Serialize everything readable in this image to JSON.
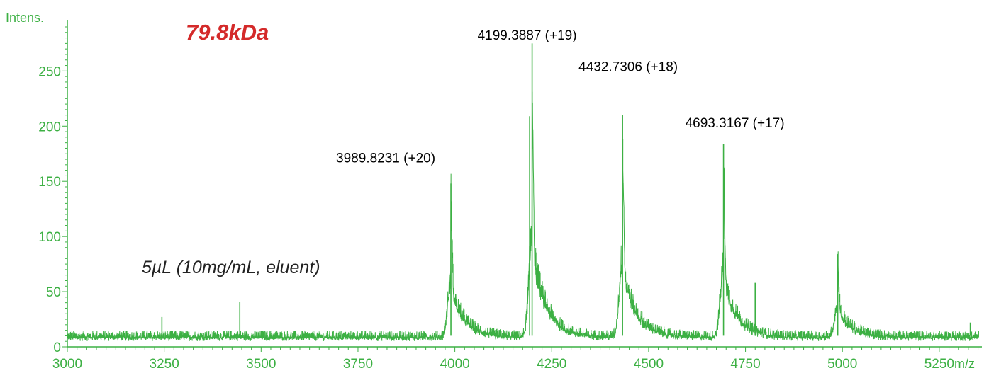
{
  "colors": {
    "trace": "#3cb043",
    "axis": "#3cb043",
    "title_accent": "#d42a2a",
    "peak_label": "#000000"
  },
  "chart_data": {
    "type": "line",
    "title": "79.8kDa",
    "subtitle": "5µL (10mg/mL, eluent)",
    "xlabel": "m/z",
    "ylabel": "Intens.",
    "xlim": [
      3000,
      5360
    ],
    "ylim": [
      0,
      290
    ],
    "x_ticks": [
      3000,
      3250,
      3500,
      3750,
      4000,
      4250,
      4500,
      4750,
      5000,
      5250
    ],
    "y_ticks": [
      0,
      50,
      100,
      150,
      200,
      250
    ],
    "grid": false,
    "legend": "none",
    "baseline_intensity": 10,
    "peaks": [
      {
        "mz": 3989.8231,
        "intensity": 148,
        "label": "3989.8231 (+20)"
      },
      {
        "mz": 4199.3887,
        "intensity": 275,
        "label": "4199.3887 (+19)"
      },
      {
        "mz": 4432.7306,
        "intensity": 210,
        "label": "4432.7306 (+18)"
      },
      {
        "mz": 4693.3167,
        "intensity": 184,
        "label": "4693.3167 (+17)"
      },
      {
        "mz": 4988,
        "intensity": 84,
        "label": ""
      }
    ],
    "minor_spikes": [
      {
        "mz": 3445,
        "intensity": 41
      },
      {
        "mz": 3244,
        "intensity": 27
      },
      {
        "mz": 4193,
        "intensity": 209
      },
      {
        "mz": 4775,
        "intensity": 58
      },
      {
        "mz": 5330,
        "intensity": 22
      }
    ]
  }
}
